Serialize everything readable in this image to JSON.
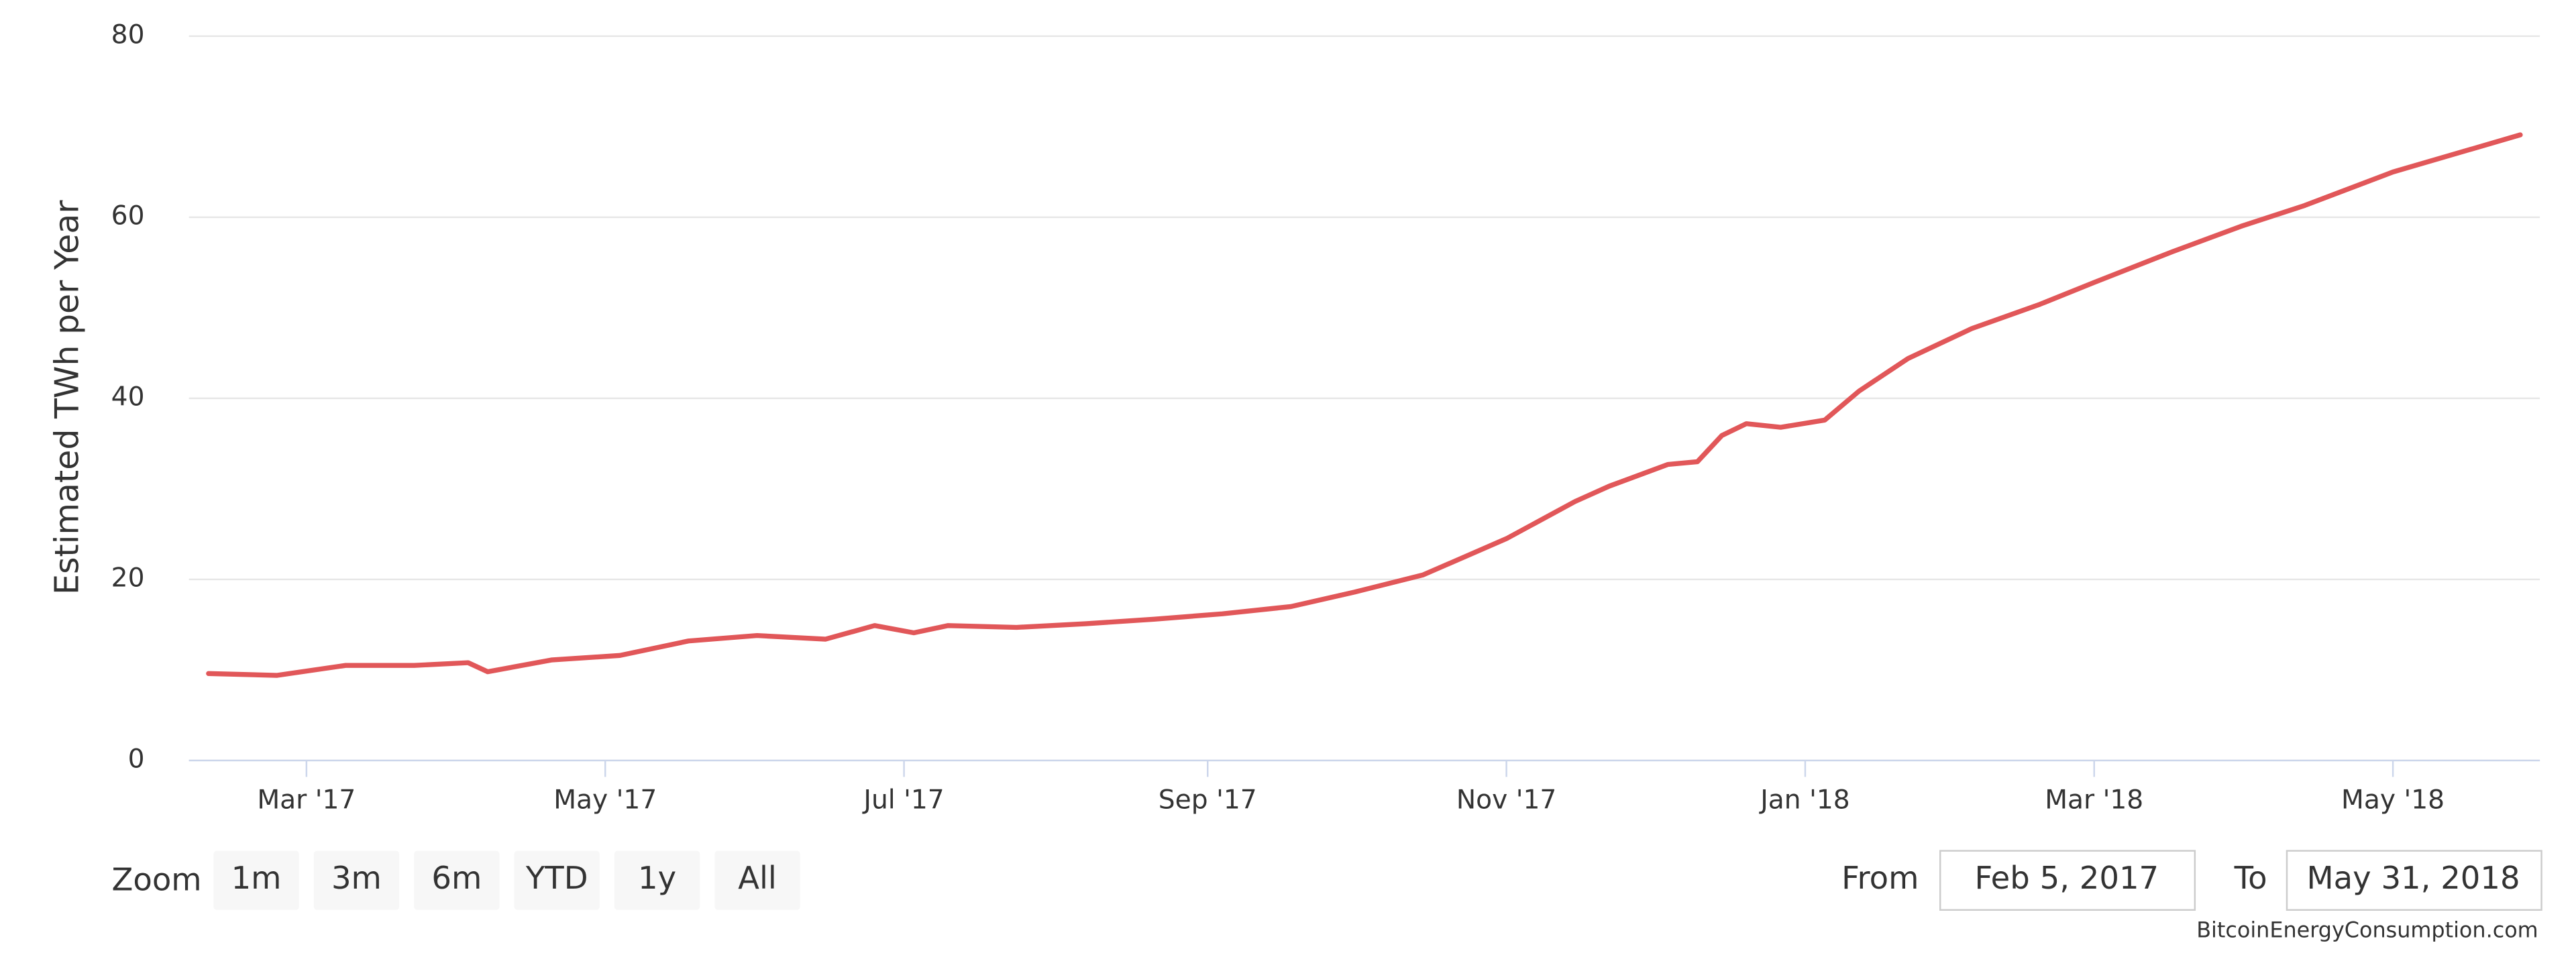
{
  "chart_data": {
    "type": "line",
    "y_label": "Estimated TWh per Year",
    "x": [
      "2017-02-09",
      "2017-02-23",
      "2017-03-09",
      "2017-03-23",
      "2017-04-03",
      "2017-04-07",
      "2017-04-20",
      "2017-05-04",
      "2017-05-18",
      "2017-06-01",
      "2017-06-15",
      "2017-06-25",
      "2017-07-03",
      "2017-07-10",
      "2017-07-24",
      "2017-08-07",
      "2017-08-21",
      "2017-09-04",
      "2017-09-18",
      "2017-10-01",
      "2017-10-15",
      "2017-11-01",
      "2017-11-15",
      "2017-11-22",
      "2017-12-04",
      "2017-12-10",
      "2017-12-15",
      "2017-12-20",
      "2017-12-27",
      "2018-01-05",
      "2018-01-12",
      "2018-01-22",
      "2018-02-04",
      "2018-02-18",
      "2018-03-01",
      "2018-03-17",
      "2018-03-31",
      "2018-04-13",
      "2018-05-01",
      "2018-05-27"
    ],
    "series": [
      {
        "color": "#e15759",
        "values": [
          9.6,
          9.4,
          10.5,
          10.5,
          10.8,
          9.8,
          11.1,
          11.6,
          13.2,
          13.8,
          13.4,
          14.9,
          14.1,
          14.9,
          14.7,
          15.1,
          15.6,
          16.2,
          17.0,
          18.6,
          20.5,
          24.5,
          28.6,
          30.3,
          32.7,
          33.0,
          35.9,
          37.2,
          36.8,
          37.6,
          40.8,
          44.4,
          47.7,
          50.4,
          52.8,
          56.2,
          59.0,
          61.3,
          65.0,
          69.1
        ]
      }
    ],
    "xlim": [
      "2017-02-05",
      "2018-05-31"
    ],
    "xticks": [
      {
        "value": "2017-03-01",
        "label": "Mar '17"
      },
      {
        "value": "2017-05-01",
        "label": "May '17"
      },
      {
        "value": "2017-07-01",
        "label": "Jul '17"
      },
      {
        "value": "2017-09-01",
        "label": "Sep '17"
      },
      {
        "value": "2017-11-01",
        "label": "Nov '17"
      },
      {
        "value": "2018-01-01",
        "label": "Jan '18"
      },
      {
        "value": "2018-03-01",
        "label": "Mar '18"
      },
      {
        "value": "2018-05-01",
        "label": "May '18"
      }
    ],
    "ylim": [
      0,
      80
    ],
    "yticks": [
      0,
      20,
      40,
      60,
      80
    ],
    "grid": true,
    "zoom": {
      "label": "Zoom",
      "buttons": [
        "1m",
        "3m",
        "6m",
        "YTD",
        "1y",
        "All"
      ],
      "disabled": [
        5
      ]
    },
    "range": {
      "from_label": "From",
      "from": "Feb 5, 2017",
      "to_label": "To",
      "to": "May 31, 2018"
    },
    "credit": "BitcoinEnergyConsumption.com"
  }
}
